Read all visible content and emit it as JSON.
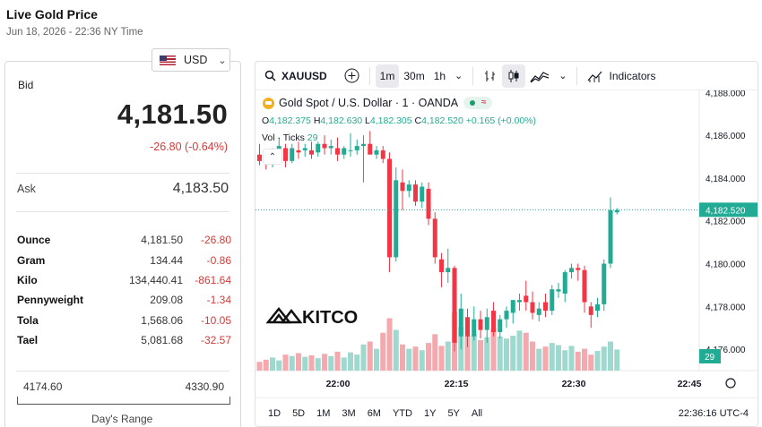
{
  "page": {
    "title": "Live Gold Price",
    "subtitle": "Jun 18, 2026 - 22:36 NY Time"
  },
  "currency": {
    "value": "USD",
    "flag_icon": "us-flag-icon"
  },
  "quote": {
    "bid_label": "Bid",
    "bid_value": "4,181.50",
    "bid_change": "-26.80 (-0.64%)",
    "ask_label": "Ask",
    "ask_value": "4,183.50"
  },
  "units": [
    {
      "name": "Ounce",
      "price": "4,181.50",
      "change": "-26.80"
    },
    {
      "name": "Gram",
      "price": "134.44",
      "change": "-0.86"
    },
    {
      "name": "Kilo",
      "price": "134,440.41",
      "change": "-861.64"
    },
    {
      "name": "Pennyweight",
      "price": "209.08",
      "change": "-1.34"
    },
    {
      "name": "Tola",
      "price": "1,568.06",
      "change": "-10.05"
    },
    {
      "name": "Tael",
      "price": "5,081.68",
      "change": "-32.57"
    }
  ],
  "days_range": {
    "low": "4174.60",
    "high": "4330.90",
    "label": "Day's Range"
  },
  "toolbar": {
    "symbol": "XAUUSD",
    "intervals": [
      "1m",
      "30m",
      "1h"
    ],
    "active_interval": "1m",
    "indicators_label": "Indicators"
  },
  "legend": {
    "title": "Gold Spot / U.S. Dollar · 1 · OANDA",
    "o_label": "O",
    "o": "4,182.375",
    "h_label": "H",
    "h": "4,182.630",
    "l_label": "L",
    "l": "4,182.305",
    "c_label": "C",
    "c": "4,182.520",
    "change": "+0.165 (+0.00%)",
    "vol_label": "Vol · Ticks",
    "vol_value": "29"
  },
  "watermark": "KITCO",
  "colors": {
    "up": "#22ab94",
    "down": "#f23645",
    "vol_up": "#9fd8cf",
    "vol_down": "#f3a9ae",
    "price_tag": "#22ab94"
  },
  "chart_data": {
    "type": "candlestick",
    "y_ticks": [
      "4,188.000",
      "4,186.000",
      "4,184.000",
      "4,182.000",
      "4,180.000",
      "4,178.000",
      "4,176.000"
    ],
    "ylim": [
      4175.0,
      4188.1
    ],
    "x_ticks": [
      "22:00",
      "22:15",
      "22:30",
      "22:45"
    ],
    "last_price": "4,182.520",
    "last_volume": "29",
    "candles": [
      {
        "o": 4185.1,
        "h": 4185.6,
        "l": 4184.6,
        "c": 4184.8,
        "v": 12
      },
      {
        "o": 4184.9,
        "h": 4185.3,
        "l": 4184.4,
        "c": 4184.8,
        "v": 15
      },
      {
        "o": 4184.9,
        "h": 4185.4,
        "l": 4184.5,
        "c": 4185.2,
        "v": 18
      },
      {
        "o": 4185.2,
        "h": 4185.9,
        "l": 4184.7,
        "c": 4185.5,
        "v": 14
      },
      {
        "o": 4185.4,
        "h": 4185.6,
        "l": 4184.5,
        "c": 4184.8,
        "v": 22
      },
      {
        "o": 4184.8,
        "h": 4185.6,
        "l": 4184.7,
        "c": 4185.4,
        "v": 20
      },
      {
        "o": 4185.3,
        "h": 4185.7,
        "l": 4184.9,
        "c": 4185.2,
        "v": 24
      },
      {
        "o": 4185.3,
        "h": 4185.6,
        "l": 4185.0,
        "c": 4185.4,
        "v": 19
      },
      {
        "o": 4185.3,
        "h": 4185.7,
        "l": 4184.9,
        "c": 4185.1,
        "v": 21
      },
      {
        "o": 4185.2,
        "h": 4185.7,
        "l": 4185.0,
        "c": 4185.6,
        "v": 17
      },
      {
        "o": 4185.6,
        "h": 4186.0,
        "l": 4185.1,
        "c": 4185.4,
        "v": 23
      },
      {
        "o": 4185.4,
        "h": 4185.8,
        "l": 4185.1,
        "c": 4185.5,
        "v": 20
      },
      {
        "o": 4185.4,
        "h": 4185.9,
        "l": 4184.8,
        "c": 4185.1,
        "v": 26
      },
      {
        "o": 4185.1,
        "h": 4185.5,
        "l": 4184.9,
        "c": 4185.4,
        "v": 18
      },
      {
        "o": 4185.3,
        "h": 4186.1,
        "l": 4185.0,
        "c": 4185.3,
        "v": 25
      },
      {
        "o": 4185.3,
        "h": 4185.8,
        "l": 4185.1,
        "c": 4185.5,
        "v": 22
      },
      {
        "o": 4185.5,
        "h": 4186.0,
        "l": 4183.8,
        "c": 4185.6,
        "v": 36
      },
      {
        "o": 4185.6,
        "h": 4186.2,
        "l": 4185.2,
        "c": 4185.1,
        "v": 40
      },
      {
        "o": 4185.1,
        "h": 4185.5,
        "l": 4184.9,
        "c": 4185.3,
        "v": 30
      },
      {
        "o": 4185.3,
        "h": 4185.5,
        "l": 4184.7,
        "c": 4184.9,
        "v": 52
      },
      {
        "o": 4184.9,
        "h": 4185.2,
        "l": 4179.6,
        "c": 4180.3,
        "v": 72
      },
      {
        "o": 4180.3,
        "h": 4184.5,
        "l": 4180.1,
        "c": 4183.9,
        "v": 56
      },
      {
        "o": 4183.8,
        "h": 4184.4,
        "l": 4182.5,
        "c": 4183.4,
        "v": 36
      },
      {
        "o": 4183.4,
        "h": 4183.9,
        "l": 4183.1,
        "c": 4183.7,
        "v": 30
      },
      {
        "o": 4183.7,
        "h": 4183.9,
        "l": 4182.7,
        "c": 4182.9,
        "v": 33
      },
      {
        "o": 4182.9,
        "h": 4183.8,
        "l": 4182.6,
        "c": 4183.6,
        "v": 28
      },
      {
        "o": 4183.5,
        "h": 4183.8,
        "l": 4181.8,
        "c": 4182.1,
        "v": 38
      },
      {
        "o": 4182.1,
        "h": 4182.4,
        "l": 4180.0,
        "c": 4180.3,
        "v": 50
      },
      {
        "o": 4180.2,
        "h": 4180.5,
        "l": 4178.9,
        "c": 4179.6,
        "v": 34
      },
      {
        "o": 4179.6,
        "h": 4180.7,
        "l": 4179.1,
        "c": 4179.8,
        "v": 40
      },
      {
        "o": 4179.8,
        "h": 4179.9,
        "l": 4175.9,
        "c": 4176.3,
        "v": 80
      },
      {
        "o": 4176.6,
        "h": 4178.6,
        "l": 4176.0,
        "c": 4177.9,
        "v": 60
      },
      {
        "o": 4177.5,
        "h": 4177.9,
        "l": 4176.1,
        "c": 4176.6,
        "v": 48
      },
      {
        "o": 4176.6,
        "h": 4178.0,
        "l": 4176.4,
        "c": 4177.4,
        "v": 50
      },
      {
        "o": 4177.4,
        "h": 4177.8,
        "l": 4176.5,
        "c": 4176.9,
        "v": 42
      },
      {
        "o": 4176.9,
        "h": 4177.9,
        "l": 4176.3,
        "c": 4177.5,
        "v": 46
      },
      {
        "o": 4177.8,
        "h": 4178.2,
        "l": 4176.6,
        "c": 4176.8,
        "v": 58
      },
      {
        "o": 4176.8,
        "h": 4177.6,
        "l": 4176.5,
        "c": 4177.4,
        "v": 47
      },
      {
        "o": 4177.4,
        "h": 4178.0,
        "l": 4177.0,
        "c": 4177.8,
        "v": 44
      },
      {
        "o": 4177.7,
        "h": 4178.3,
        "l": 4177.2,
        "c": 4178.3,
        "v": 48
      },
      {
        "o": 4178.2,
        "h": 4178.6,
        "l": 4177.8,
        "c": 4178.3,
        "v": 55
      },
      {
        "o": 4178.5,
        "h": 4179.2,
        "l": 4177.8,
        "c": 4178.2,
        "v": 52
      },
      {
        "o": 4178.2,
        "h": 4178.7,
        "l": 4177.4,
        "c": 4177.7,
        "v": 40
      },
      {
        "o": 4177.6,
        "h": 4178.2,
        "l": 4177.3,
        "c": 4177.9,
        "v": 30
      },
      {
        "o": 4178.2,
        "h": 4178.6,
        "l": 4177.5,
        "c": 4177.8,
        "v": 33
      },
      {
        "o": 4177.8,
        "h": 4179.0,
        "l": 4177.6,
        "c": 4178.8,
        "v": 38
      },
      {
        "o": 4178.7,
        "h": 4179.1,
        "l": 4178.4,
        "c": 4178.8,
        "v": 35
      },
      {
        "o": 4178.6,
        "h": 4179.7,
        "l": 4178.2,
        "c": 4179.6,
        "v": 28
      },
      {
        "o": 4179.6,
        "h": 4180.0,
        "l": 4179.3,
        "c": 4179.8,
        "v": 34
      },
      {
        "o": 4179.8,
        "h": 4180.0,
        "l": 4179.2,
        "c": 4179.7,
        "v": 26
      },
      {
        "o": 4179.7,
        "h": 4179.9,
        "l": 4177.7,
        "c": 4178.2,
        "v": 30
      },
      {
        "o": 4178.0,
        "h": 4178.2,
        "l": 4177.0,
        "c": 4177.6,
        "v": 22
      },
      {
        "o": 4177.8,
        "h": 4178.4,
        "l": 4177.5,
        "c": 4178.1,
        "v": 27
      },
      {
        "o": 4178.1,
        "h": 4180.2,
        "l": 4177.8,
        "c": 4180.0,
        "v": 33
      },
      {
        "o": 4180.0,
        "h": 4183.1,
        "l": 4179.8,
        "c": 4182.5,
        "v": 40
      },
      {
        "o": 4182.4,
        "h": 4182.6,
        "l": 4182.3,
        "c": 4182.5,
        "v": 29
      }
    ]
  }
}
